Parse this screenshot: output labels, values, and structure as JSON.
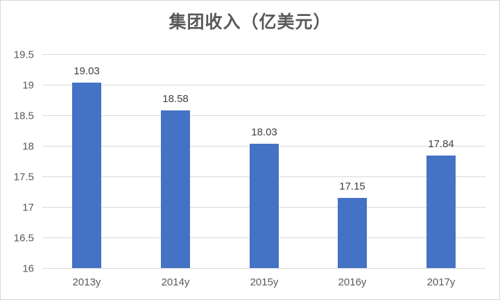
{
  "chart_data": {
    "type": "bar",
    "title": "集团收入（亿美元）",
    "categories": [
      "2013y",
      "2014y",
      "2015y",
      "2016y",
      "2017y"
    ],
    "values": [
      19.03,
      18.58,
      18.03,
      17.15,
      17.84
    ],
    "data_labels": [
      "19.03",
      "18.58",
      "18.03",
      "17.15",
      "17.84"
    ],
    "xlabel": "",
    "ylabel": "",
    "ylim": [
      16,
      19.5
    ],
    "ytick_step": 0.5,
    "ytick_labels": [
      "16",
      "16.5",
      "17",
      "17.5",
      "18",
      "18.5",
      "19",
      "19.5"
    ],
    "grid": true,
    "legend": "none",
    "colors": {
      "bar": "#4472C4",
      "gridline": "#D9D9D9",
      "border": "#D9D9D9",
      "axis_text": "#595959",
      "title_text": "#595959",
      "data_label_text": "#404040",
      "background": "#FFFFFF"
    }
  }
}
